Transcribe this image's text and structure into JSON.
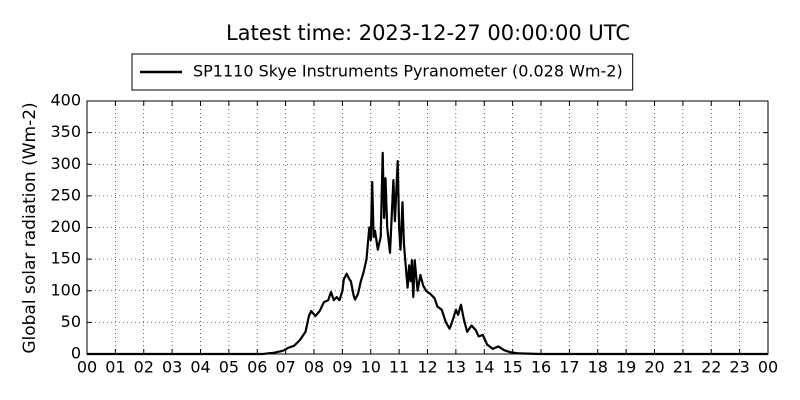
{
  "chart_data": {
    "type": "line",
    "title": "Latest time: 2023-12-27 00:00:00 UTC",
    "y_label": "Global solar radiation (Wm-2)",
    "legend": "top",
    "grid": true,
    "xlim": [
      0,
      24
    ],
    "ylim": [
      0,
      400
    ],
    "yticks": [
      0,
      50,
      100,
      150,
      200,
      250,
      300,
      350,
      400
    ],
    "xticks": [
      {
        "value": 0,
        "label": "00"
      },
      {
        "value": 1,
        "label": "01"
      },
      {
        "value": 2,
        "label": "02"
      },
      {
        "value": 3,
        "label": "03"
      },
      {
        "value": 4,
        "label": "04"
      },
      {
        "value": 5,
        "label": "05"
      },
      {
        "value": 6,
        "label": "06"
      },
      {
        "value": 7,
        "label": "07"
      },
      {
        "value": 8,
        "label": "08"
      },
      {
        "value": 9,
        "label": "09"
      },
      {
        "value": 10,
        "label": "10"
      },
      {
        "value": 11,
        "label": "11"
      },
      {
        "value": 12,
        "label": "12"
      },
      {
        "value": 13,
        "label": "13"
      },
      {
        "value": 14,
        "label": "14"
      },
      {
        "value": 15,
        "label": "15"
      },
      {
        "value": 16,
        "label": "16"
      },
      {
        "value": 17,
        "label": "17"
      },
      {
        "value": 18,
        "label": "18"
      },
      {
        "value": 19,
        "label": "19"
      },
      {
        "value": 20,
        "label": "20"
      },
      {
        "value": 21,
        "label": "21"
      },
      {
        "value": 22,
        "label": "22"
      },
      {
        "value": 23,
        "label": "23"
      },
      {
        "value": 24,
        "label": "00"
      }
    ],
    "x": [
      0,
      6.2,
      6.6,
      6.9,
      7.1,
      7.3,
      7.5,
      7.7,
      7.82,
      7.9,
      8.05,
      8.2,
      8.35,
      8.5,
      8.6,
      8.7,
      8.8,
      8.9,
      9.0,
      9.05,
      9.15,
      9.25,
      9.3,
      9.4,
      9.45,
      9.55,
      9.65,
      9.75,
      9.85,
      9.95,
      10.0,
      10.05,
      10.1,
      10.15,
      10.25,
      10.35,
      10.42,
      10.47,
      10.52,
      10.58,
      10.68,
      10.8,
      10.85,
      10.95,
      11.0,
      11.05,
      11.12,
      11.17,
      11.25,
      11.3,
      11.35,
      11.4,
      11.45,
      11.5,
      11.55,
      11.65,
      11.75,
      11.85,
      11.95,
      12.1,
      12.25,
      12.35,
      12.5,
      12.65,
      12.78,
      12.9,
      13.0,
      13.08,
      13.18,
      13.28,
      13.4,
      13.55,
      13.7,
      13.8,
      13.95,
      14.1,
      14.3,
      14.5,
      14.7,
      14.9,
      15.2,
      16,
      24
    ],
    "series": [
      {
        "name": "SP1110 Skye Instruments Pyranometer (0.028 Wm-2)",
        "color": "#000000",
        "values": [
          0,
          0,
          2,
          5,
          10,
          13,
          22,
          35,
          60,
          68,
          60,
          68,
          82,
          85,
          98,
          85,
          90,
          85,
          100,
          118,
          127,
          118,
          115,
          92,
          86,
          95,
          115,
          130,
          150,
          200,
          180,
          272,
          185,
          195,
          165,
          185,
          318,
          215,
          278,
          200,
          160,
          275,
          210,
          305,
          200,
          165,
          240,
          175,
          130,
          105,
          140,
          115,
          148,
          90,
          148,
          100,
          125,
          108,
          100,
          95,
          88,
          75,
          70,
          50,
          40,
          55,
          70,
          62,
          78,
          55,
          35,
          45,
          38,
          28,
          30,
          15,
          8,
          12,
          6,
          3,
          1,
          0,
          0
        ]
      }
    ]
  }
}
